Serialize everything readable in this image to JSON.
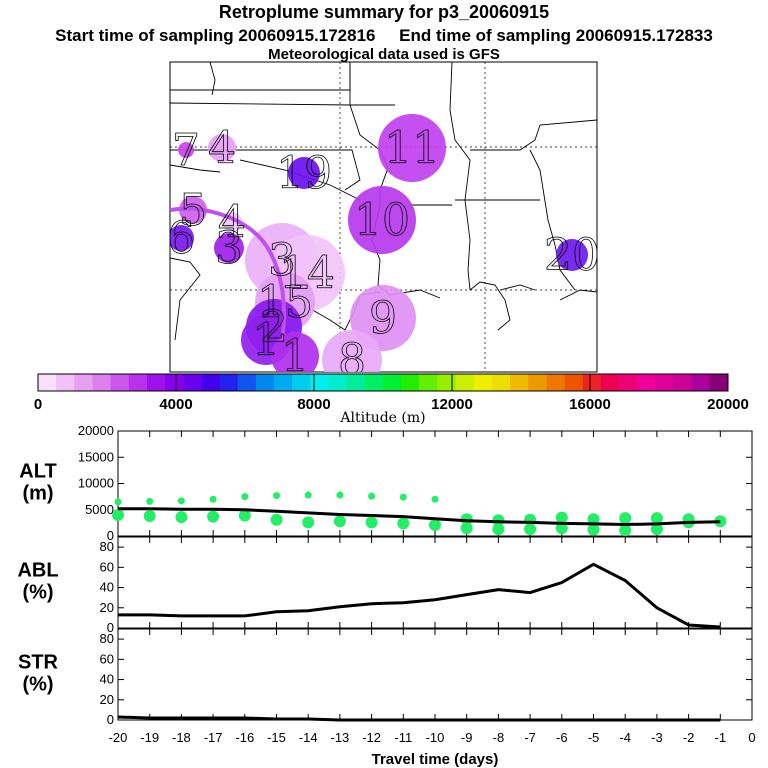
{
  "header": {
    "title": "Retroplume summary for p3_20060915",
    "start_label": "Start time of sampling 20060915.172816",
    "end_label": "End time of sampling 20060915.172833",
    "met_label": "Meteorological data used is GFS"
  },
  "map": {
    "plume_points": [
      {
        "label": "7",
        "color": "#cc44ee"
      },
      {
        "label": "4",
        "color": "#e8a0f8"
      },
      {
        "label": "19",
        "color": "#6a10ee"
      },
      {
        "label": "11",
        "color": "#c040f0"
      },
      {
        "label": "5",
        "color": "#d060ee"
      },
      {
        "label": "4",
        "color": "#f0c8fa"
      },
      {
        "label": "10",
        "color": "#b838ee"
      },
      {
        "label": "6",
        "color": "#7a18ee"
      },
      {
        "label": "3",
        "color": "#a020ee"
      },
      {
        "label": "3",
        "color": "#eab0f8"
      },
      {
        "label": "14",
        "color": "#f2c4fa"
      },
      {
        "label": "20",
        "color": "#7018ee"
      },
      {
        "label": "15",
        "color": "#e4a0f6"
      },
      {
        "label": "9",
        "color": "#e090f4"
      },
      {
        "label": "2",
        "color": "#8818ee"
      },
      {
        "label": "1",
        "color": "#9020ee"
      },
      {
        "label": "1",
        "color": "#b030ee"
      },
      {
        "label": "8",
        "color": "#e8a8f8"
      }
    ]
  },
  "colorbar": {
    "colors": [
      "#f8e0fa",
      "#f0c0f6",
      "#e8a0f2",
      "#dd80ee",
      "#cc55ee",
      "#bb30ee",
      "#a010ee",
      "#8800ee",
      "#6a00ee",
      "#4400ee",
      "#2222ee",
      "#1155ee",
      "#0088ee",
      "#00aaee",
      "#00ccee",
      "#00eeee",
      "#00eecc",
      "#00ee99",
      "#00ee66",
      "#00ee33",
      "#22ee00",
      "#66ee00",
      "#99ee00",
      "#ccee00",
      "#eeee00",
      "#eedd00",
      "#eebb00",
      "#ee9900",
      "#ee7700",
      "#ee5500",
      "#ee2222",
      "#ee0055",
      "#ee0077",
      "#ee0099",
      "#dd0099",
      "#cc0099",
      "#aa0099",
      "#880077"
    ],
    "ticks": [
      "0",
      "4000",
      "8000",
      "12000",
      "16000",
      "20000"
    ],
    "label": "Altitude (m)"
  },
  "chart_data": [
    {
      "type": "line",
      "title": "ALT (m)",
      "label_top": "ALT",
      "label_bottom": "(m)",
      "xlabel": "Travel time (days)",
      "xlim": [
        -20,
        0
      ],
      "ylim": [
        0,
        20000
      ],
      "yticks": [
        "0",
        "5000",
        "10000",
        "15000",
        "20000"
      ],
      "x": [
        -20,
        -19,
        -18,
        -17,
        -16,
        -15,
        -14,
        -13,
        -12,
        -11,
        -10,
        -9,
        -8,
        -7,
        -6,
        -5,
        -4,
        -3,
        -2,
        -1
      ],
      "values": [
        5200,
        5200,
        5100,
        5100,
        5000,
        4700,
        4400,
        4100,
        3900,
        3700,
        3300,
        2900,
        2700,
        2600,
        2400,
        2300,
        2200,
        2300,
        2600,
        2700
      ],
      "scatter": [
        {
          "x": -20,
          "y": 6500
        },
        {
          "x": -20,
          "y": 4000
        },
        {
          "x": -19,
          "y": 6600
        },
        {
          "x": -19,
          "y": 3800
        },
        {
          "x": -18,
          "y": 6700
        },
        {
          "x": -18,
          "y": 3600
        },
        {
          "x": -17,
          "y": 7000
        },
        {
          "x": -17,
          "y": 3700
        },
        {
          "x": -16,
          "y": 7500
        },
        {
          "x": -16,
          "y": 3900
        },
        {
          "x": -15,
          "y": 7700
        },
        {
          "x": -15,
          "y": 3100
        },
        {
          "x": -14,
          "y": 7800
        },
        {
          "x": -14,
          "y": 2600
        },
        {
          "x": -13,
          "y": 7800
        },
        {
          "x": -13,
          "y": 2800
        },
        {
          "x": -12,
          "y": 7600
        },
        {
          "x": -12,
          "y": 2600
        },
        {
          "x": -11,
          "y": 7400
        },
        {
          "x": -11,
          "y": 2400
        },
        {
          "x": -10,
          "y": 7000
        },
        {
          "x": -10,
          "y": 2100
        },
        {
          "x": -9,
          "y": 3200
        },
        {
          "x": -9,
          "y": 1500
        },
        {
          "x": -8,
          "y": 3000
        },
        {
          "x": -8,
          "y": 1300
        },
        {
          "x": -7,
          "y": 3100
        },
        {
          "x": -7,
          "y": 1300
        },
        {
          "x": -6,
          "y": 3500
        },
        {
          "x": -6,
          "y": 1500
        },
        {
          "x": -5,
          "y": 3200
        },
        {
          "x": -5,
          "y": 1200
        },
        {
          "x": -4,
          "y": 3400
        },
        {
          "x": -4,
          "y": 1100
        },
        {
          "x": -3,
          "y": 3400
        },
        {
          "x": -3,
          "y": 1300
        },
        {
          "x": -2,
          "y": 3200
        },
        {
          "x": -2,
          "y": 2600
        },
        {
          "x": -1,
          "y": 2800
        }
      ]
    },
    {
      "type": "line",
      "title": "ABL (%)",
      "label_top": "ABL",
      "label_bottom": "(%)",
      "xlim": [
        -20,
        0
      ],
      "ylim": [
        0,
        90
      ],
      "yticks": [
        "0",
        "20",
        "40",
        "60",
        "80"
      ],
      "x": [
        -20,
        -19,
        -18,
        -17,
        -16,
        -15,
        -14,
        -13,
        -12,
        -11,
        -10,
        -9,
        -8,
        -7,
        -6,
        -5,
        -4,
        -3,
        -2,
        -1
      ],
      "values": [
        13,
        13,
        12,
        12,
        12,
        16,
        17,
        21,
        24,
        25,
        28,
        33,
        38,
        35,
        45,
        63,
        47,
        20,
        3,
        1
      ]
    },
    {
      "type": "line",
      "title": "STR (%)",
      "label_top": "STR",
      "label_bottom": "(%)",
      "xlim": [
        -20,
        0
      ],
      "ylim": [
        0,
        90
      ],
      "yticks": [
        "0",
        "20",
        "40",
        "60",
        "80"
      ],
      "xticks": [
        "-20",
        "-19",
        "-18",
        "-17",
        "-16",
        "-15",
        "-14",
        "-13",
        "-12",
        "-11",
        "-10",
        "-9",
        "-8",
        "-7",
        "-6",
        "-5",
        "-4",
        "-3",
        "-2",
        "-1",
        "0"
      ],
      "x": [
        -20,
        -19,
        -18,
        -17,
        -16,
        -15,
        -14,
        -13,
        -12,
        -11,
        -10,
        -9,
        -8,
        -7,
        -6,
        -5,
        -4,
        -3,
        -2,
        -1
      ],
      "values": [
        3,
        2,
        2,
        2,
        2,
        1,
        1,
        0,
        0,
        0,
        0,
        0,
        0,
        0,
        0,
        0,
        0,
        0,
        0,
        0
      ]
    }
  ]
}
